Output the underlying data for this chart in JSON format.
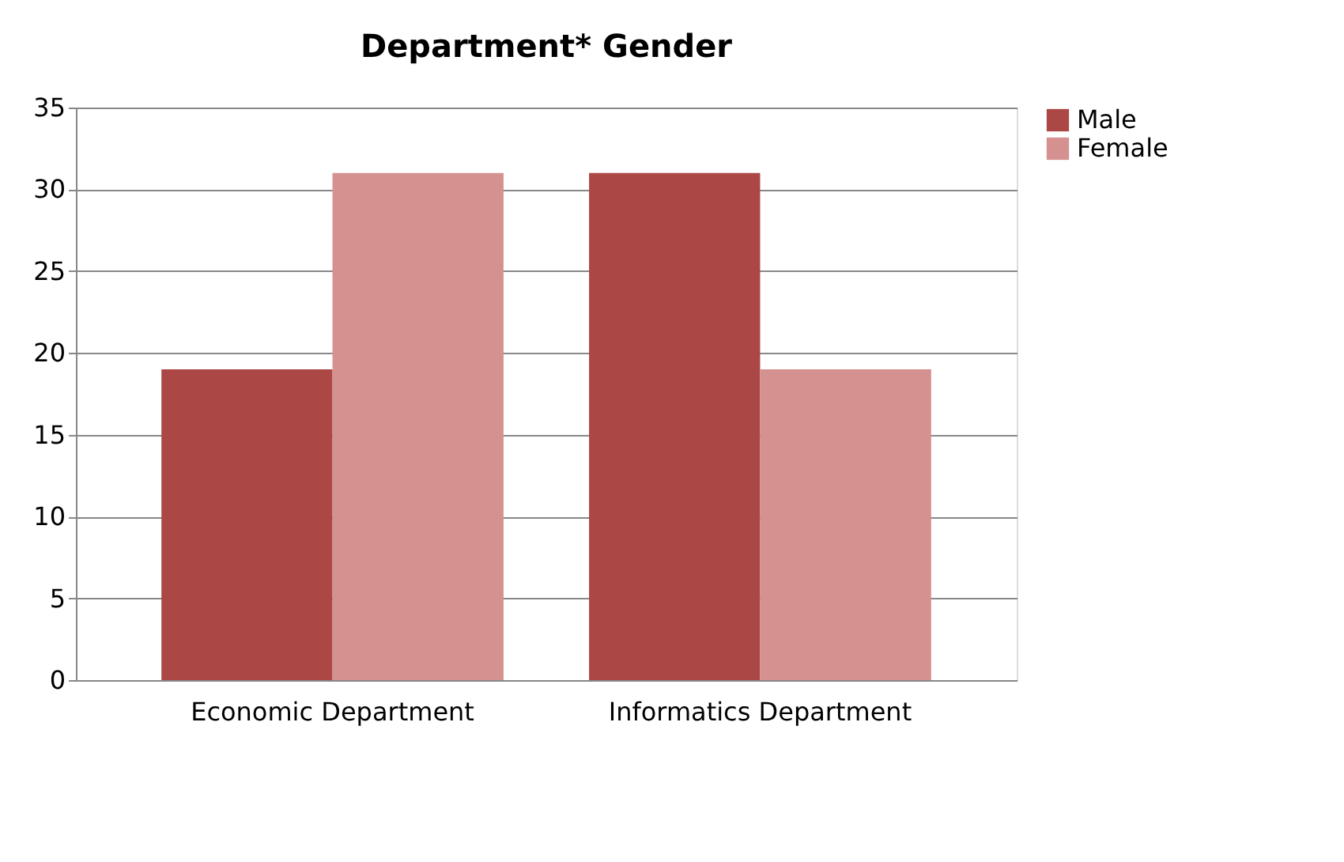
{
  "chart_data": {
    "type": "bar",
    "title": "Department* Gender",
    "categories": [
      "Economic Department",
      "Informatics Department"
    ],
    "series": [
      {
        "name": "Male",
        "color": "#ab4744",
        "values": [
          19,
          31
        ]
      },
      {
        "name": "Female",
        "color": "#d4918f",
        "values": [
          31,
          19
        ]
      }
    ],
    "ylim": [
      0,
      35
    ],
    "yticks": [
      0,
      5,
      10,
      15,
      20,
      25,
      30,
      35
    ],
    "grid": "y",
    "legend": "right"
  }
}
